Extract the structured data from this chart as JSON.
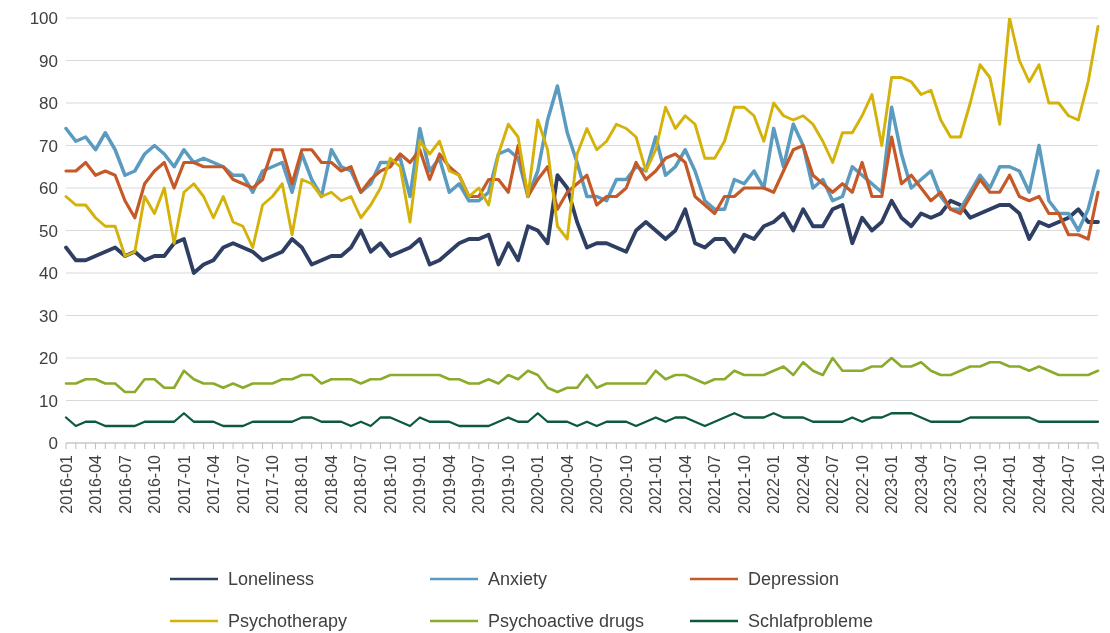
{
  "chart_data": {
    "type": "line",
    "categories": [
      "2016-01",
      null,
      null,
      "2016-04",
      null,
      null,
      "2016-07",
      null,
      null,
      "2016-10",
      null,
      null,
      "2017-01",
      null,
      null,
      "2017-04",
      null,
      null,
      "2017-07",
      null,
      null,
      "2017-10",
      null,
      null,
      "2018-01",
      null,
      null,
      "2018-04",
      null,
      null,
      "2018-07",
      null,
      null,
      "2018-10",
      null,
      null,
      "2019-01",
      null,
      null,
      "2019-04",
      null,
      null,
      "2019-07",
      null,
      null,
      "2019-10",
      null,
      null,
      "2020-01",
      null,
      null,
      "2020-04",
      null,
      null,
      "2020-07",
      null,
      null,
      "2020-10",
      null,
      null,
      "2021-01",
      null,
      null,
      "2021-04",
      null,
      null,
      "2021-07",
      null,
      null,
      "2021-10",
      null,
      null,
      "2022-01",
      null,
      null,
      "2022-04",
      null,
      null,
      "2022-07",
      null,
      null,
      "2022-10",
      null,
      null,
      "2023-01",
      null,
      null,
      "2023-04",
      null,
      null,
      "2023-07",
      null,
      null,
      "2023-10",
      null,
      null,
      "2024-01",
      null,
      null,
      "2024-04",
      null,
      null,
      "2024-07",
      null,
      null,
      "2024-10"
    ],
    "series": [
      {
        "name": "Loneliness",
        "color": "#2e3f63",
        "values": [
          46,
          43,
          43,
          44,
          45,
          46,
          44,
          45,
          43,
          44,
          44,
          47,
          48,
          40,
          42,
          43,
          46,
          47,
          46,
          45,
          43,
          44,
          45,
          48,
          46,
          42,
          43,
          44,
          44,
          46,
          50,
          45,
          47,
          44,
          45,
          46,
          48,
          42,
          43,
          45,
          47,
          48,
          48,
          49,
          42,
          47,
          43,
          51,
          50,
          47,
          63,
          60,
          52,
          46,
          47,
          47,
          46,
          45,
          50,
          52,
          50,
          48,
          50,
          55,
          47,
          46,
          48,
          48,
          45,
          49,
          48,
          51,
          52,
          54,
          50,
          55,
          51,
          51,
          55,
          56,
          47,
          53,
          50,
          52,
          57,
          53,
          51,
          54,
          53,
          54,
          57,
          56,
          53,
          54,
          55,
          56,
          56,
          54,
          48,
          52,
          51,
          52,
          53,
          55,
          52,
          52
        ]
      },
      {
        "name": "Anxiety",
        "color": "#5b9bbf",
        "values": [
          74,
          71,
          72,
          69,
          73,
          69,
          63,
          64,
          68,
          70,
          68,
          65,
          69,
          66,
          67,
          66,
          65,
          63,
          63,
          59,
          64,
          65,
          66,
          59,
          68,
          62,
          58,
          69,
          65,
          64,
          59,
          61,
          66,
          66,
          67,
          58,
          74,
          64,
          67,
          59,
          61,
          57,
          57,
          59,
          68,
          69,
          67,
          58,
          64,
          76,
          84,
          73,
          66,
          58,
          58,
          57,
          62,
          62,
          65,
          64,
          72,
          63,
          65,
          69,
          64,
          57,
          55,
          55,
          62,
          61,
          64,
          60,
          74,
          65,
          75,
          70,
          60,
          62,
          57,
          58,
          65,
          63,
          61,
          59,
          79,
          68,
          60,
          62,
          64,
          58,
          55,
          55,
          59,
          63,
          60,
          65,
          65,
          64,
          59,
          70,
          57,
          54,
          54,
          50,
          55,
          64
        ]
      },
      {
        "name": "Depression",
        "color": "#c55a28",
        "values": [
          64,
          64,
          66,
          63,
          64,
          63,
          57,
          53,
          61,
          64,
          66,
          60,
          66,
          66,
          65,
          65,
          65,
          62,
          61,
          60,
          62,
          69,
          69,
          61,
          69,
          69,
          66,
          66,
          64,
          65,
          59,
          62,
          64,
          65,
          68,
          66,
          69,
          62,
          68,
          65,
          63,
          58,
          58,
          62,
          62,
          59,
          70,
          58,
          62,
          65,
          55,
          59,
          61,
          63,
          56,
          58,
          58,
          60,
          66,
          62,
          64,
          67,
          68,
          66,
          58,
          56,
          54,
          58,
          58,
          60,
          60,
          60,
          59,
          64,
          69,
          70,
          63,
          61,
          59,
          61,
          59,
          66,
          58,
          58,
          72,
          61,
          63,
          60,
          57,
          59,
          55,
          54,
          58,
          62,
          59,
          59,
          63,
          58,
          57,
          58,
          54,
          54,
          49,
          49,
          48,
          59
        ]
      },
      {
        "name": "Psychotherapy",
        "color": "#d4b20a",
        "values": [
          58,
          56,
          56,
          53,
          51,
          51,
          44,
          45,
          58,
          54,
          60,
          47,
          59,
          61,
          58,
          53,
          58,
          52,
          51,
          46,
          56,
          58,
          61,
          49,
          62,
          61,
          58,
          59,
          57,
          58,
          53,
          56,
          60,
          67,
          65,
          52,
          71,
          68,
          71,
          64,
          63,
          58,
          60,
          56,
          68,
          75,
          72,
          58,
          76,
          69,
          51,
          48,
          68,
          74,
          69,
          71,
          75,
          74,
          72,
          64,
          69,
          79,
          74,
          77,
          75,
          67,
          67,
          71,
          79,
          79,
          77,
          71,
          80,
          77,
          76,
          77,
          75,
          71,
          66,
          73,
          73,
          77,
          82,
          70,
          86,
          86,
          85,
          82,
          83,
          76,
          72,
          72,
          80,
          89,
          86,
          75,
          100,
          90,
          85,
          89,
          80,
          80,
          77,
          76,
          85,
          98
        ]
      },
      {
        "name": "Psychoactive drugs",
        "color": "#8aab2c",
        "values": [
          14,
          14,
          15,
          15,
          14,
          14,
          12,
          12,
          15,
          15,
          13,
          13,
          17,
          15,
          14,
          14,
          13,
          14,
          13,
          14,
          14,
          14,
          15,
          15,
          16,
          16,
          14,
          15,
          15,
          15,
          14,
          15,
          15,
          16,
          16,
          16,
          16,
          16,
          16,
          15,
          15,
          14,
          14,
          15,
          14,
          16,
          15,
          17,
          16,
          13,
          12,
          13,
          13,
          16,
          13,
          14,
          14,
          14,
          14,
          14,
          17,
          15,
          16,
          16,
          15,
          14,
          15,
          15,
          17,
          16,
          16,
          16,
          17,
          18,
          16,
          19,
          17,
          16,
          20,
          17,
          17,
          17,
          18,
          18,
          20,
          18,
          18,
          19,
          17,
          16,
          16,
          17,
          18,
          18,
          19,
          19,
          18,
          18,
          17,
          18,
          17,
          16,
          16,
          16,
          16,
          17
        ]
      },
      {
        "name": "Schlafprobleme",
        "color": "#0d5a3a",
        "values": [
          6,
          4,
          5,
          5,
          4,
          4,
          4,
          4,
          5,
          5,
          5,
          5,
          7,
          5,
          5,
          5,
          4,
          4,
          4,
          5,
          5,
          5,
          5,
          5,
          6,
          6,
          5,
          5,
          5,
          4,
          5,
          4,
          6,
          6,
          5,
          4,
          6,
          5,
          5,
          5,
          4,
          4,
          4,
          4,
          5,
          6,
          5,
          5,
          7,
          5,
          5,
          5,
          4,
          5,
          4,
          5,
          5,
          5,
          4,
          5,
          6,
          5,
          6,
          6,
          5,
          4,
          5,
          6,
          7,
          6,
          6,
          6,
          7,
          6,
          6,
          6,
          5,
          5,
          5,
          5,
          6,
          5,
          6,
          6,
          7,
          7,
          7,
          6,
          5,
          5,
          5,
          5,
          6,
          6,
          6,
          6,
          6,
          6,
          6,
          5,
          5,
          5,
          5,
          5,
          5,
          5
        ]
      }
    ],
    "ylim": [
      0,
      100
    ],
    "yticks": [
      0,
      10,
      20,
      30,
      40,
      50,
      60,
      70,
      80,
      90,
      100
    ],
    "grid": "y",
    "legend": "bottom"
  }
}
